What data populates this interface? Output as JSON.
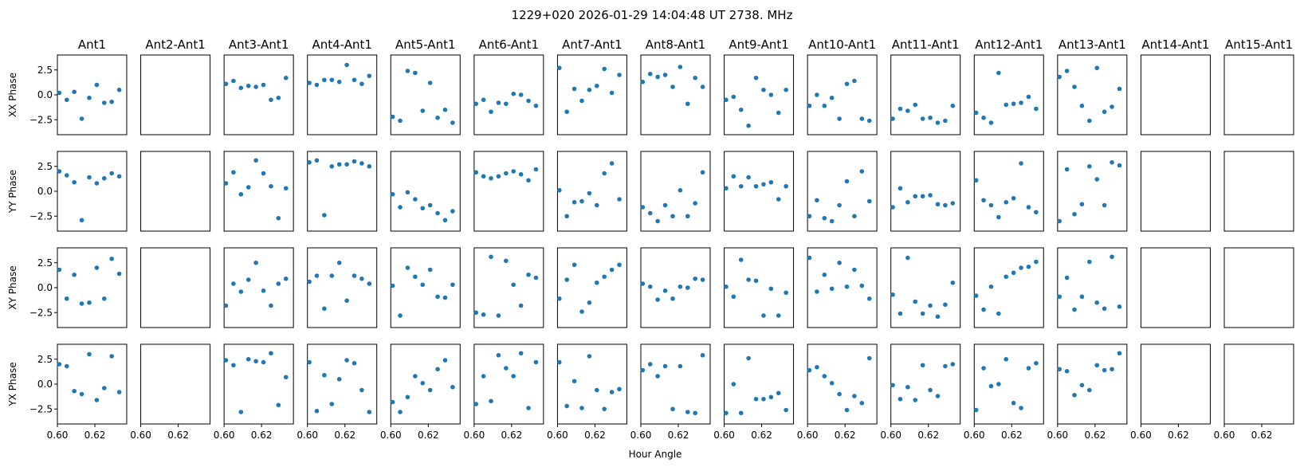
{
  "chart_data": {
    "type": "scatter",
    "title": "1229+020  2026-01-29 14:04:48 UT  2738. MHz",
    "xlabel": "Hour Angle",
    "xlim": [
      0.6,
      0.637
    ],
    "ylim": [
      -4.0,
      4.0
    ],
    "xticks": [
      0.6,
      0.62
    ],
    "xtick_labels": [
      "0.60",
      "0.62"
    ],
    "yticks": [
      2.5,
      0.0,
      -2.5
    ],
    "ytick_labels": [
      "2.5",
      "0.0",
      "−2.5"
    ],
    "grid": false,
    "x": [
      0.601,
      0.605,
      0.609,
      0.613,
      0.617,
      0.621,
      0.625,
      0.629,
      0.633
    ],
    "rows": [
      "XX Phase",
      "YY Phase",
      "XY Phase",
      "YX Phase"
    ],
    "columns": [
      "Ant1",
      "Ant2-Ant1",
      "Ant3-Ant1",
      "Ant4-Ant1",
      "Ant5-Ant1",
      "Ant6-Ant1",
      "Ant7-Ant1",
      "Ant8-Ant1",
      "Ant9-Ant1",
      "Ant10-Ant1",
      "Ant11-Ant1",
      "Ant12-Ant1",
      "Ant13-Ant1",
      "Ant14-Ant1",
      "Ant15-Ant1"
    ],
    "point_color": "#1f77b4",
    "values": [
      [
        [
          0.2,
          -0.5,
          0.3,
          -2.4,
          -0.3,
          1.0,
          -0.8,
          -0.7,
          0.5
        ],
        [],
        [
          1.1,
          1.4,
          0.7,
          0.9,
          0.8,
          1.0,
          -0.5,
          -0.3,
          1.7
        ],
        [
          1.2,
          1.0,
          1.5,
          1.5,
          1.3,
          3.0,
          1.5,
          1.1,
          1.9
        ],
        [
          -2.2,
          -2.6,
          2.4,
          2.2,
          -1.6,
          1.2,
          -2.3,
          -1.5,
          -2.8
        ],
        [
          -0.9,
          -0.5,
          -1.7,
          -0.8,
          -0.9,
          0.1,
          0.0,
          -0.6,
          -1.1
        ],
        [
          2.7,
          -1.7,
          0.6,
          -0.6,
          0.5,
          0.9,
          2.6,
          0.2,
          2.0
        ],
        [
          1.3,
          2.1,
          1.8,
          2.0,
          0.8,
          2.8,
          -0.9,
          1.7,
          0.8
        ],
        [
          -0.5,
          -0.2,
          -1.5,
          -3.1,
          1.7,
          0.5,
          0.0,
          -1.8,
          0.5
        ],
        [
          -1.1,
          0.0,
          -1.1,
          -0.3,
          -2.4,
          1.1,
          1.4,
          -2.4,
          -2.6
        ],
        [
          -2.4,
          -1.4,
          -1.6,
          -1.0,
          -2.4,
          -2.3,
          -2.8,
          -2.6,
          -1.1
        ],
        [
          -1.8,
          -2.3,
          -2.8,
          2.2,
          -1.0,
          -0.9,
          -0.8,
          -0.2,
          -1.4
        ],
        [
          1.8,
          2.4,
          0.8,
          -1.1,
          -2.6,
          2.7,
          -1.7,
          -1.2,
          0.6
        ],
        [],
        []
      ],
      [
        [
          2.0,
          1.6,
          0.9,
          -2.9,
          1.4,
          0.8,
          1.3,
          1.8,
          1.5
        ],
        [],
        [
          0.8,
          1.9,
          -0.3,
          0.4,
          3.1,
          1.8,
          0.5,
          -2.7,
          0.3
        ],
        [
          2.9,
          3.1,
          -2.4,
          2.5,
          2.7,
          2.7,
          3.0,
          2.8,
          2.5
        ],
        [
          -0.3,
          -1.6,
          -0.1,
          -0.8,
          -1.7,
          -1.4,
          -2.2,
          -2.9,
          -2.0
        ],
        [
          1.9,
          1.5,
          1.3,
          1.5,
          1.8,
          2.0,
          1.7,
          1.1,
          2.2
        ],
        [
          0.1,
          -2.5,
          -1.1,
          -1.0,
          -0.2,
          -1.4,
          1.8,
          2.8,
          -0.8
        ],
        [
          -1.6,
          -2.2,
          -3.0,
          -1.4,
          -2.5,
          0.1,
          -2.5,
          -1.2,
          1.9
        ],
        [
          0.3,
          1.5,
          0.5,
          1.4,
          0.5,
          0.7,
          0.9,
          -0.8,
          0.5
        ],
        [
          -2.5,
          -0.9,
          -2.7,
          -3.0,
          -1.4,
          1.0,
          -2.5,
          2.0,
          -1.0
        ],
        [
          -1.6,
          0.3,
          -1.1,
          -0.5,
          -0.5,
          -0.4,
          -1.3,
          -1.4,
          -1.2
        ],
        [
          1.1,
          -0.9,
          -1.4,
          -2.6,
          -1.1,
          -0.7,
          2.8,
          -1.6,
          -2.1
        ],
        [
          -3.0,
          2.2,
          -2.3,
          -1.3,
          2.5,
          1.2,
          -1.4,
          2.9,
          2.6
        ],
        [],
        []
      ],
      [
        [
          1.8,
          -1.1,
          1.3,
          -1.6,
          -1.5,
          2.0,
          -1.1,
          2.9,
          1.4
        ],
        [],
        [
          -1.8,
          0.4,
          -0.4,
          0.8,
          2.5,
          -0.3,
          -1.8,
          0.4,
          0.9
        ],
        [
          0.6,
          1.2,
          -2.1,
          1.2,
          2.5,
          -1.3,
          1.2,
          0.9,
          0.4
        ],
        [
          0.2,
          -2.8,
          2.0,
          1.1,
          0.3,
          1.8,
          -0.9,
          -1.0,
          0.3
        ],
        [
          -2.5,
          -2.7,
          3.1,
          -2.8,
          2.7,
          0.3,
          -1.8,
          1.3,
          1.0
        ],
        [
          -1.1,
          0.8,
          2.3,
          -2.4,
          -1.5,
          0.5,
          1.1,
          1.8,
          2.3
        ],
        [
          0.4,
          0.1,
          -1.2,
          -0.3,
          -1.1,
          0.1,
          0.0,
          0.9,
          0.8
        ],
        [
          0.1,
          -0.9,
          2.8,
          0.8,
          0.7,
          -2.8,
          -0.1,
          -2.8,
          -0.5
        ],
        [
          3.0,
          -0.4,
          1.3,
          -0.1,
          2.5,
          0.1,
          1.8,
          0.2,
          -1.1
        ],
        [
          -0.7,
          -2.6,
          3.0,
          -1.4,
          -2.6,
          -1.8,
          -2.9,
          -1.7,
          0.5
        ],
        [
          -0.8,
          -2.2,
          0.1,
          -2.6,
          1.1,
          1.5,
          2.0,
          2.1,
          2.6
        ],
        [
          -0.9,
          1.0,
          -2.2,
          -0.9,
          2.6,
          -1.5,
          -2.1,
          3.1,
          -1.9
        ],
        [],
        []
      ],
      [
        [
          2.0,
          1.8,
          -0.7,
          -1.0,
          3.0,
          -1.6,
          -0.4,
          2.8,
          -0.8
        ],
        [],
        [
          2.4,
          1.9,
          -2.8,
          2.5,
          2.3,
          2.2,
          3.1,
          -2.1,
          0.7
        ],
        [
          2.2,
          -2.7,
          0.9,
          -2.0,
          0.5,
          2.4,
          2.1,
          -0.6,
          -2.8
        ],
        [
          -1.8,
          -2.8,
          -1.3,
          0.8,
          0.1,
          -0.6,
          1.5,
          2.4,
          -0.3
        ],
        [
          -2.0,
          0.8,
          -1.7,
          2.9,
          1.6,
          0.8,
          3.1,
          -2.4,
          2.2
        ],
        [
          2.2,
          -2.2,
          0.3,
          -2.4,
          2.8,
          -0.6,
          -2.5,
          -0.8,
          -0.5
        ],
        [
          1.4,
          2.0,
          0.8,
          1.8,
          -2.5,
          1.8,
          -2.8,
          -2.9,
          2.9
        ],
        [
          -2.9,
          0.0,
          -2.9,
          2.6,
          -1.5,
          -1.5,
          -1.3,
          -0.9,
          -2.6
        ],
        [
          1.4,
          1.7,
          0.8,
          0.1,
          -1.0,
          -2.6,
          -1.2,
          -1.9,
          2.6
        ],
        [
          -0.1,
          -1.5,
          -0.3,
          -1.6,
          1.9,
          -0.6,
          -1.2,
          1.8,
          2.0
        ],
        [
          -2.6,
          1.6,
          -0.2,
          0.0,
          2.5,
          -1.9,
          -2.4,
          1.6,
          2.1
        ],
        [
          1.5,
          1.3,
          -1.1,
          -0.1,
          -0.6,
          1.9,
          1.4,
          1.5,
          3.1
        ],
        [],
        []
      ]
    ]
  }
}
